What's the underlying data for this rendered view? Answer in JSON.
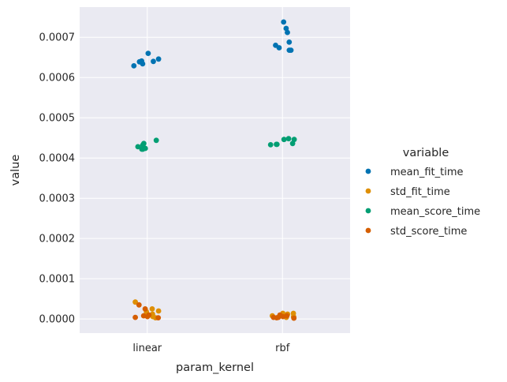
{
  "chart_data": {
    "type": "scatter",
    "style": "strip-plot",
    "xlabel": "param_kernel",
    "ylabel": "value",
    "categories": [
      "linear",
      "rbf"
    ],
    "ylim": [
      -3.5e-05,
      0.000775
    ],
    "yticks": [
      0.0,
      0.0001,
      0.0002,
      0.0003,
      0.0004,
      0.0005,
      0.0006,
      0.0007
    ],
    "ytick_labels": [
      "0.0000",
      "0.0001",
      "0.0002",
      "0.0003",
      "0.0004",
      "0.0005",
      "0.0006",
      "0.0007"
    ],
    "grid": true,
    "background": "#eaeaf2",
    "legend": {
      "title": "variable",
      "placement": "right"
    },
    "series": [
      {
        "name": "mean_fit_time",
        "color": "#0173b2",
        "points": {
          "linear": [
            0.000629,
            0.000646,
            0.000641,
            0.000639,
            0.00064,
            0.00066,
            0.000634
          ],
          "rbf": [
            0.000688,
            0.000668,
            0.000738,
            0.000712,
            0.000722,
            0.000668,
            0.00068,
            0.000674
          ]
        }
      },
      {
        "name": "std_fit_time",
        "color": "#de8f05",
        "points": {
          "linear": [
            6e-06,
            1.2e-05,
            4.2e-05,
            2.5e-05,
            1.8e-05,
            2e-05,
            3e-06
          ],
          "rbf": [
            8e-06,
            1.4e-05,
            4e-06,
            1.2e-05,
            4e-06,
            1e-05,
            6e-06,
            1.4e-05
          ]
        }
      },
      {
        "name": "mean_score_time",
        "color": "#029e73",
        "points": {
          "linear": [
            0.000436,
            0.000422,
            0.000444,
            0.000432,
            0.000428,
            0.000422,
            0.000424
          ],
          "rbf": [
            0.000434,
            0.000446,
            0.000446,
            0.000448,
            0.000436,
            0.000433,
            0.000434
          ]
        }
      },
      {
        "name": "std_score_time",
        "color": "#d55e00",
        "points": {
          "linear": [
            1e-05,
            6e-06,
            2.5e-05,
            3.5e-05,
            3e-06,
            4e-06,
            8e-06
          ],
          "rbf": [
            4e-06,
            8e-06,
            2e-06,
            6e-06,
            4e-06,
            1e-05,
            3e-06
          ]
        }
      }
    ]
  }
}
